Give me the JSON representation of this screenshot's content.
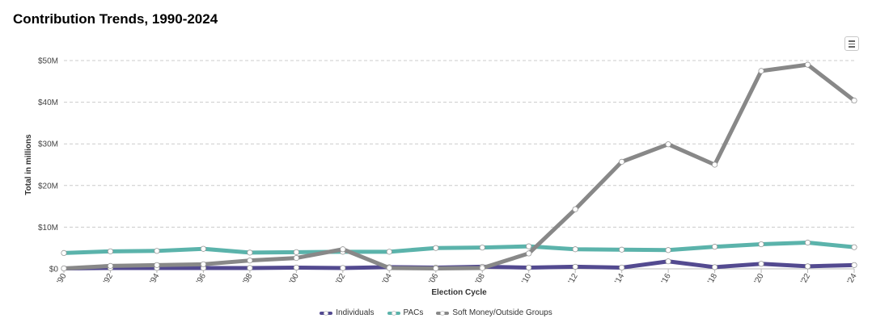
{
  "header": {
    "title": "Contribution Trends, 1990-2024"
  },
  "chart_data": {
    "type": "line",
    "title": "Contribution Trends, 1990-2024",
    "xlabel": "Election Cycle",
    "ylabel": "Total in millions",
    "categories": [
      "'90",
      "'92",
      "'94",
      "'96",
      "'98",
      "'00",
      "'02",
      "'04",
      "'06",
      "'08",
      "'10",
      "'12",
      "'14",
      "'16",
      "'18",
      "'20",
      "'22",
      "'24"
    ],
    "y_ticks": [
      "$0",
      "$10M",
      "$20M",
      "$30M",
      "$40M",
      "$50M"
    ],
    "ylim": [
      0,
      50
    ],
    "grid": true,
    "legend_position": "bottom-center",
    "series": [
      {
        "name": "Individuals",
        "color": "#534a90",
        "values": [
          0.1,
          0.2,
          0.2,
          0.2,
          0.2,
          0.3,
          0.2,
          0.4,
          0.3,
          0.5,
          0.3,
          0.5,
          0.3,
          1.8,
          0.4,
          1.2,
          0.6,
          0.9
        ]
      },
      {
        "name": "PACs",
        "color": "#5bb3ab",
        "values": [
          3.8,
          4.2,
          4.3,
          4.8,
          3.9,
          4.0,
          4.1,
          4.1,
          5.0,
          5.1,
          5.4,
          4.7,
          4.6,
          4.5,
          5.3,
          5.9,
          6.3,
          5.2
        ]
      },
      {
        "name": "Soft Money/Outside Groups",
        "color": "#888888",
        "values": [
          0.1,
          0.7,
          0.9,
          1.1,
          2.0,
          2.6,
          4.7,
          0.2,
          0.1,
          0.2,
          3.7,
          14.3,
          25.7,
          29.9,
          25.0,
          47.5,
          49.0,
          40.4
        ]
      }
    ]
  },
  "toolbar": {
    "menu_icon": "hamburger-menu-icon"
  }
}
